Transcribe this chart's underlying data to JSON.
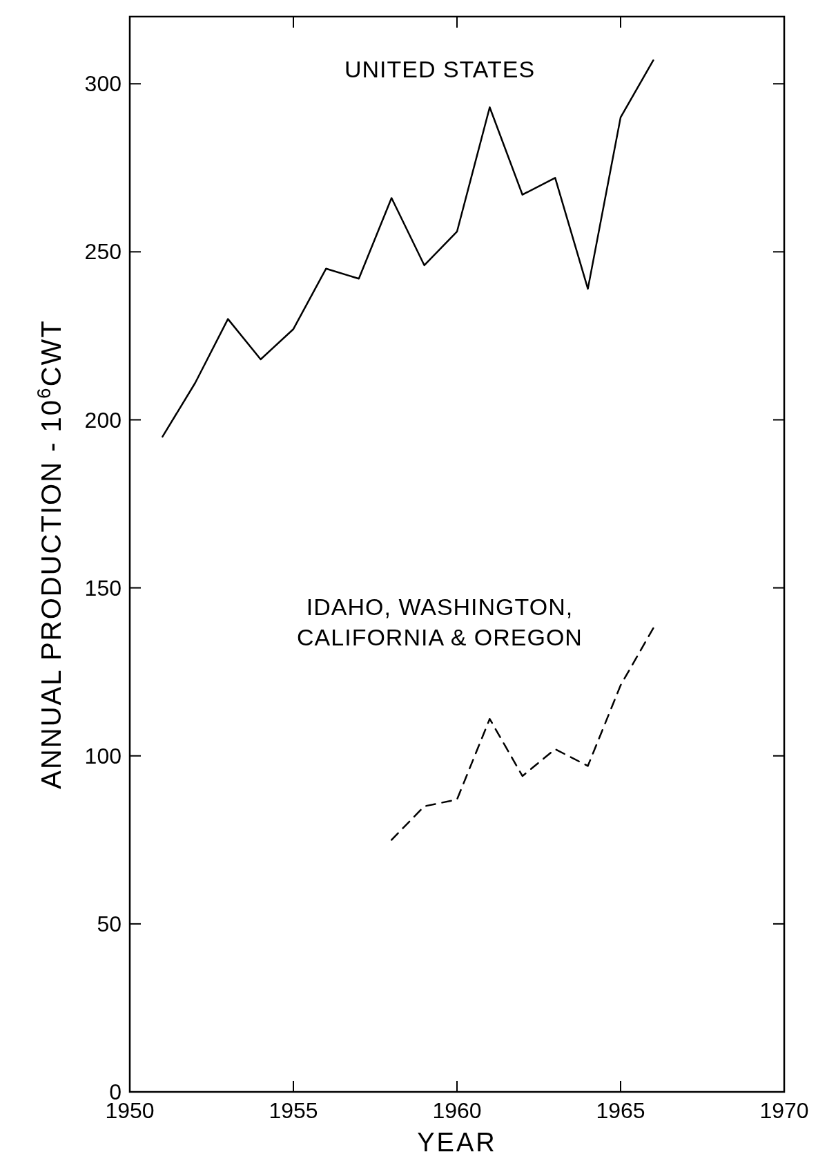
{
  "chart_data": {
    "type": "line",
    "xlabel": "YEAR",
    "ylabel": "ANNUAL PRODUCTION - 10$^{6}$CWT",
    "x": [
      1951,
      1952,
      1953,
      1954,
      1955,
      1956,
      1957,
      1958,
      1959,
      1960,
      1961,
      1962,
      1963,
      1964,
      1965,
      1966
    ],
    "series": [
      {
        "name": "UNITED STATES",
        "color": "#000000",
        "line_style": "solid",
        "values": [
          195,
          211,
          230,
          218,
          227,
          245,
          242,
          266,
          246,
          256,
          293,
          267,
          272,
          239,
          290,
          307
        ]
      },
      {
        "name": "IDAHO, WASHINGTON, CALIFORNIA & OREGON",
        "color": "#000000",
        "line_style": "dashed",
        "x": [
          1958,
          1959,
          1960,
          1961,
          1962,
          1963,
          1964,
          1965,
          1966
        ],
        "values": [
          75,
          85,
          87,
          111,
          94,
          102,
          97,
          121,
          138
        ]
      }
    ],
    "xlim": [
      1950,
      1970
    ],
    "xticks": [
      1950,
      1955,
      1960,
      1965,
      1970
    ],
    "ylim": [
      0,
      320
    ],
    "yticks": [
      0,
      50,
      100,
      150,
      200,
      250,
      300
    ],
    "grid": false,
    "marker": "none"
  }
}
